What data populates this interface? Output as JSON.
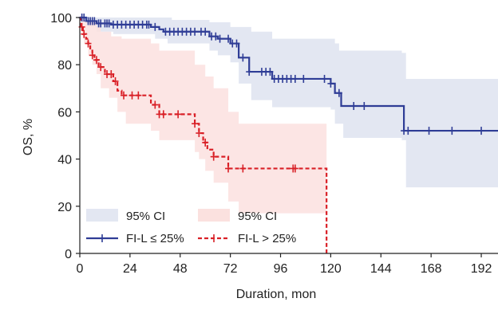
{
  "chart_data": {
    "type": "line",
    "subtype": "kaplan-meier survival curve with 95% confidence bands",
    "xlabel": "Duration, mon",
    "ylabel": "OS, %",
    "xlim": [
      0,
      200
    ],
    "ylim": [
      0,
      100
    ],
    "xticks": [
      0,
      24,
      48,
      72,
      96,
      120,
      144,
      168,
      192
    ],
    "yticks": [
      0,
      20,
      40,
      60,
      80,
      100
    ],
    "grid": false,
    "legend_position": "bottom-left",
    "legend": {
      "ci_labels": [
        "95% CI",
        "95% CI"
      ],
      "series_labels": [
        "FI-L ≤ 25%",
        "FI-L > 25%"
      ]
    },
    "series": [
      {
        "name": "FI-L ≤ 25%",
        "color": "#2f3d96",
        "ci_color": "#e3e7f2",
        "line_style": "solid",
        "steps": [
          [
            0,
            100
          ],
          [
            3,
            98.5
          ],
          [
            8,
            97.5
          ],
          [
            15,
            97
          ],
          [
            34,
            96
          ],
          [
            38,
            95
          ],
          [
            40,
            94
          ],
          [
            62,
            92
          ],
          [
            66,
            91
          ],
          [
            72,
            89
          ],
          [
            76,
            83
          ],
          [
            81,
            77
          ],
          [
            92,
            74
          ],
          [
            120,
            72
          ],
          [
            122,
            68
          ],
          [
            125,
            62.5
          ],
          [
            155,
            52
          ],
          [
            200,
            52
          ]
        ],
        "censor_x": [
          1,
          2,
          4,
          5,
          6,
          7,
          9,
          10,
          12,
          13,
          14,
          16,
          18,
          20,
          22,
          24,
          26,
          28,
          30,
          32,
          33,
          36,
          41,
          43,
          45,
          47,
          49,
          51,
          53,
          55,
          58,
          60,
          63,
          65,
          67,
          71,
          73,
          75,
          78,
          81,
          87,
          89,
          91,
          93,
          95,
          97,
          99,
          101,
          103,
          107,
          117,
          120,
          124,
          131,
          136,
          155,
          157,
          167,
          178,
          192
        ],
        "ci_upper": [
          [
            0,
            100
          ],
          [
            36,
            100
          ],
          [
            44,
            99
          ],
          [
            62,
            98
          ],
          [
            72,
            96
          ],
          [
            82,
            94
          ],
          [
            92,
            91
          ],
          [
            122,
            89
          ],
          [
            124,
            86
          ],
          [
            154,
            85
          ],
          [
            156,
            74
          ],
          [
            200,
            74
          ]
        ],
        "ci_lower": [
          [
            0,
            100
          ],
          [
            4,
            96
          ],
          [
            8,
            94
          ],
          [
            16,
            93
          ],
          [
            36,
            91
          ],
          [
            42,
            89
          ],
          [
            62,
            86
          ],
          [
            66,
            84
          ],
          [
            72,
            81
          ],
          [
            76,
            72
          ],
          [
            82,
            65
          ],
          [
            92,
            62
          ],
          [
            120,
            61
          ],
          [
            122,
            55
          ],
          [
            126,
            49
          ],
          [
            154,
            48
          ],
          [
            156,
            28
          ],
          [
            200,
            28
          ]
        ]
      },
      {
        "name": "FI-L > 25%",
        "color": "#d92027",
        "ci_color": "#fbe1df",
        "line_style": "dashed",
        "steps": [
          [
            0,
            100
          ],
          [
            0.5,
            96
          ],
          [
            1.5,
            93
          ],
          [
            3,
            91
          ],
          [
            4,
            89
          ],
          [
            5,
            86
          ],
          [
            6,
            84
          ],
          [
            7,
            82
          ],
          [
            9,
            79
          ],
          [
            12,
            76
          ],
          [
            16,
            73
          ],
          [
            18,
            69
          ],
          [
            20,
            67
          ],
          [
            34,
            63
          ],
          [
            38,
            59
          ],
          [
            55,
            55
          ],
          [
            57,
            51
          ],
          [
            59,
            47
          ],
          [
            61,
            44
          ],
          [
            64,
            41
          ],
          [
            71,
            36
          ],
          [
            118,
            0
          ]
        ],
        "censor_x": [
          1,
          2,
          4,
          6,
          8,
          10,
          13,
          15,
          17,
          21,
          25,
          28,
          36,
          38,
          40,
          47,
          55,
          57,
          60,
          64,
          71,
          78,
          102,
          103
        ],
        "ci_upper": [
          [
            0,
            100
          ],
          [
            2,
            99
          ],
          [
            4,
            98
          ],
          [
            8,
            96
          ],
          [
            10,
            94
          ],
          [
            15,
            92
          ],
          [
            20,
            91
          ],
          [
            34,
            89
          ],
          [
            38,
            86
          ],
          [
            55,
            80
          ],
          [
            60,
            75
          ],
          [
            64,
            70
          ],
          [
            71,
            60
          ],
          [
            76,
            55
          ],
          [
            118,
            55
          ]
        ],
        "ci_lower": [
          [
            0,
            100
          ],
          [
            1,
            93
          ],
          [
            2,
            89
          ],
          [
            4,
            84
          ],
          [
            6,
            80
          ],
          [
            8,
            76
          ],
          [
            10,
            70
          ],
          [
            14,
            66
          ],
          [
            18,
            60
          ],
          [
            22,
            55
          ],
          [
            34,
            52
          ],
          [
            38,
            48
          ],
          [
            55,
            43
          ],
          [
            57,
            40
          ],
          [
            60,
            35
          ],
          [
            64,
            30
          ],
          [
            71,
            22
          ],
          [
            76,
            17
          ],
          [
            118,
            17
          ]
        ]
      }
    ]
  }
}
